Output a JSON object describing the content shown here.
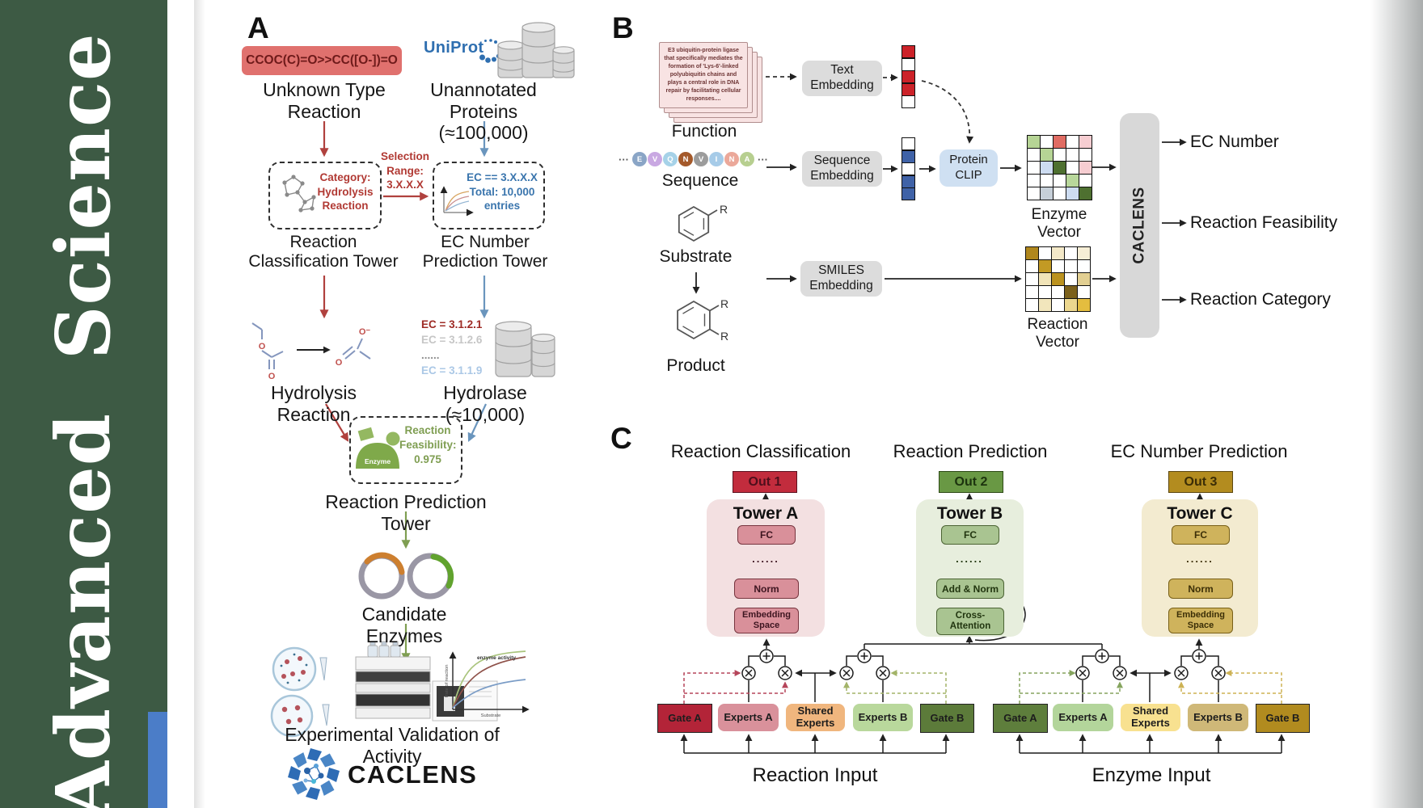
{
  "journal": {
    "name": "Advanced  Science",
    "colors": {
      "sidebar_green": "#3d5a44",
      "accent_strip_blue": "#4b7dc8"
    }
  },
  "panelA": {
    "label": "A",
    "smiles": "CCOC(C)=O>>CC([O-])=O",
    "unknown_reaction": "Unknown Type\nReaction",
    "uniprot": "UniProt",
    "unannotated": "Unannotated\nProteins (≈100,000)",
    "classification_box": "Category:\nHydrolysis\nReaction",
    "selection": "Selection\nRange:\n3.X.X.X",
    "ec_box": "EC == 3.X.X.X\nTotal: 10,000\nentries",
    "tower_classification": "Reaction\nClassification Tower",
    "tower_ec": "EC Number\nPrediction Tower",
    "hydrolysis": "Hydrolysis Reaction",
    "atom_o": "O",
    "atom_ominus": "O⁻",
    "ec_list": [
      {
        "text": "EC = 3.1.2.1",
        "color": "#9e2b25",
        "bold": true
      },
      {
        "text": "EC = 3.1.2.6",
        "color": "#c6c6c6",
        "bold": false
      },
      {
        "text": "......",
        "color": "#8f8f8f",
        "bold": true
      },
      {
        "text": "EC = 3.1.1.9",
        "color": "#abc8e6",
        "bold": false
      }
    ],
    "hydrolase": "Hydrolase (≈10,000)",
    "enzyme_icon": "Enzyme",
    "feasibility": "Reaction\nFeasibility:\n0.975",
    "tower_prediction": "Reaction Prediction Tower",
    "candidates": "Candidate Enzymes",
    "plot": {
      "ylabel": "Rate of reaction",
      "xlabel": "Substrate",
      "annotation": "enzyme activity"
    },
    "validation": "Experimental Validation of Activity",
    "logo": "CACLENS"
  },
  "panelB": {
    "label": "B",
    "function_text": "E3 ubiquitin-protein ligase\nthat specifically mediates the\nformation of 'Lys-6'-linked\npolyubiquitin chains and\nplays a central role in DNA\nrepair by facilitating cellular\nresponses....",
    "function_label": "Function",
    "ellipsis": "···",
    "sequence": [
      {
        "letter": "E",
        "color": "#8aa5c6"
      },
      {
        "letter": "V",
        "color": "#c9a8e2"
      },
      {
        "letter": "Q",
        "color": "#a6d2e8"
      },
      {
        "letter": "N",
        "color": "#a4592a"
      },
      {
        "letter": "V",
        "color": "#9c9c9c"
      },
      {
        "letter": "I",
        "color": "#a6cbe8"
      },
      {
        "letter": "N",
        "color": "#eba89a"
      },
      {
        "letter": "A",
        "color": "#b7cf90"
      }
    ],
    "sequence_label": "Sequence",
    "text_embedding": "Text\nEmbedding",
    "sequence_embedding": "Sequence\nEmbedding",
    "protein_clip": "Protein\nCLIP",
    "text_vector": [
      "#cc2229",
      "#ffffff",
      "#cc2229",
      "#cc2229",
      "#ffffff"
    ],
    "sequence_vector": [
      "#ffffff",
      "#3f62a7",
      "#ffffff",
      "#3f62a7",
      "#3f62a7"
    ],
    "enzyme_vector": {
      "label": "Enzyme Vector",
      "cells": [
        "#b6d495",
        "#ffffff",
        "#e06c63",
        "#ffffff",
        "#f6cdd1",
        "#ffffff",
        "#b6d495",
        "#ffffff",
        "#ffffff",
        "#ffffff",
        "#ffffff",
        "#cddcf1",
        "#4e7030",
        "#ffffff",
        "#f6cdd1",
        "#ffffff",
        "#ffffff",
        "#ffffff",
        "#b8d79b",
        "#ffffff",
        "#ffffff",
        "#c6cfd8",
        "#ffffff",
        "#cddcf1",
        "#4e7030"
      ]
    },
    "substrate_label": "Substrate",
    "product_label": "Product",
    "r_label": "R",
    "smiles_embedding": "SMILES\nEmbedding",
    "reaction_vector": {
      "label": "Reaction Vector",
      "cells": [
        "#b0871d",
        "#ffffff",
        "#f4e9c8",
        "#ffffff",
        "#f6eed6",
        "#ffffff",
        "#c29a24",
        "#ffffff",
        "#ffffff",
        "#ffffff",
        "#ffffff",
        "#f1e4b8",
        "#bb921f",
        "#ffffff",
        "#e2cf92",
        "#ffffff",
        "#ffffff",
        "#ffffff",
        "#7c611b",
        "#ffffff",
        "#ffffff",
        "#f2e6bc",
        "#ffffff",
        "#ecd78e",
        "#e4bd3f"
      ]
    },
    "caclens_bar": "CACLENS",
    "outputs": [
      "EC Number",
      "Reaction Feasibility",
      "Reaction Category"
    ]
  },
  "panelC": {
    "label": "C",
    "headers": [
      "Reaction Classification",
      "Reaction Prediction",
      "EC Number Prediction"
    ],
    "outs": [
      "Out 1",
      "Out 2",
      "Out 3"
    ],
    "towers": [
      {
        "name": "Tower A",
        "layers": [
          "FC",
          "......",
          "Norm",
          "Embedding\nSpace"
        ]
      },
      {
        "name": "Tower B",
        "layers": [
          "FC",
          "......",
          "Add & Norm",
          "Cross-\nAttention"
        ]
      },
      {
        "name": "Tower C",
        "layers": [
          "FC",
          "......",
          "Norm",
          "Embedding\nSpace"
        ]
      }
    ],
    "reaction_group": [
      "Gate A",
      "Experts A",
      "Shared\nExperts",
      "Experts B",
      "Gate B"
    ],
    "enzyme_group": [
      "Gate A",
      "Experts A",
      "Shared\nExperts",
      "Experts B",
      "Gate B"
    ],
    "inputs": [
      "Reaction Input",
      "Enzyme Input"
    ]
  }
}
